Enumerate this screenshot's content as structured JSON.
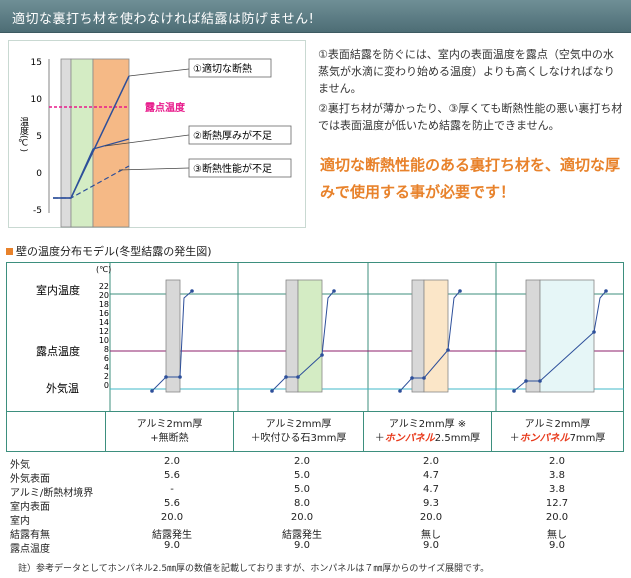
{
  "header": {
    "title": "適切な裏打ち材を使わなければ結露は防げません!"
  },
  "top_chart": {
    "ylabel": "温度(℃)",
    "ticks": [
      "15",
      "10",
      "5",
      "0",
      "-5"
    ],
    "dew_label": "露点温度",
    "callouts": [
      "①適切な断熱",
      "②断熱厚みが不足",
      "③断熱性能が不足"
    ]
  },
  "explanation": {
    "p1": "①表面結露を防ぐには、室内の表面温度を露点（空気中の水蒸気が水滴に変わり始める温度）よりも高くしなければなりません。",
    "p2": "②裏打ち材が薄かったり、③厚くても断熱性能の悪い裏打ち材では表面温度が低いため結露を防止できません。",
    "highlight": "適切な断熱性能のある裏打ち材を、適切な厚みで使用する事が必要です！"
  },
  "section": {
    "title": "壁の温度分布モデル(冬型結露の発生図)"
  },
  "model_chart": {
    "unit": "(℃)",
    "yticks": [
      "22",
      "20",
      "18",
      "16",
      "14",
      "12",
      "10",
      "8",
      "6",
      "4",
      "2",
      "0"
    ],
    "row_labels": [
      "室内温度",
      "露点温度",
      "外気温"
    ],
    "colors": {
      "indoor": "#3d8f7e",
      "dew": "#8e1f6b",
      "outdoor": "#40b8c8",
      "curve": "#2d4f9a"
    }
  },
  "columns": [
    {
      "line1": "アルミ2mm厚",
      "line2": "+無断熱",
      "hp": "",
      "tail": ""
    },
    {
      "line1": "アルミ2mm厚",
      "line2": "＋吹付ひる石3mm厚",
      "hp": "",
      "tail": ""
    },
    {
      "line1": "アルミ2mm厚 ※",
      "line2": "＋",
      "hp": "ホンパネル",
      "tail": "2.5mm厚"
    },
    {
      "line1": "アルミ2mm厚",
      "line2": "＋",
      "hp": "ホンパネル",
      "tail": "7mm厚"
    }
  ],
  "table": {
    "rows": [
      {
        "label": "外気",
        "values": [
          "2.0",
          "2.0",
          "2.0",
          "2.0"
        ]
      },
      {
        "label": "外気表面",
        "values": [
          "5.6",
          "5.0",
          "4.7",
          "3.8"
        ]
      },
      {
        "label": "アルミ/断熱材境界",
        "values": [
          "-",
          "5.0",
          "4.7",
          "3.8"
        ]
      },
      {
        "label": "室内表面",
        "values": [
          "5.6",
          "8.0",
          "9.3",
          "12.7"
        ]
      },
      {
        "label": "室内",
        "values": [
          "20.0",
          "20.0",
          "20.0",
          "20.0"
        ]
      },
      {
        "label": "結露有無",
        "values": [
          "結露発生",
          "結露発生",
          "無し",
          "無し"
        ]
      },
      {
        "label": "露点温度",
        "values": [
          "9.0",
          "9.0",
          "9.0",
          "9.0"
        ]
      }
    ]
  },
  "note": "註）参考データとしてホンパネル2.5㎜厚の数値を記載しておりますが、ホンパネルは７㎜厚からのサイズ展開です。"
}
